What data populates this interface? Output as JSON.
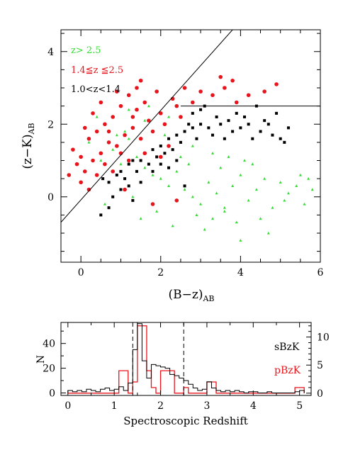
{
  "chart_data": [
    {
      "type": "scatter",
      "title": "",
      "xlabel": "(B−z)",
      "xlabel_sub": "AB",
      "ylabel": "(z−K)",
      "ylabel_sub": "AB",
      "xlim": [
        -0.5,
        6
      ],
      "ylim": [
        -1.8,
        4.6
      ],
      "x_ticks": [
        0,
        2,
        4,
        6
      ],
      "y_ticks": [
        0,
        2,
        4
      ],
      "grid": false,
      "legend_position": "top-left",
      "legend": [
        {
          "label": "z> 2.5",
          "color": "#33dd33"
        },
        {
          "label": "1.4≦z ≦2.5",
          "color": "#e8141b"
        },
        {
          "label": "1.0<z<1.4",
          "color": "#000000"
        }
      ],
      "lines": [
        {
          "name": "diagonal",
          "x": [
            -0.5,
            3.8
          ],
          "y": [
            -0.7,
            4.6
          ]
        },
        {
          "name": "horizontal",
          "x": [
            2.5,
            6
          ],
          "y": [
            2.5,
            2.5
          ]
        }
      ],
      "series": [
        {
          "name": "1.0<z<1.4",
          "marker": "square",
          "color": "#000000",
          "points": [
            [
              0.55,
              0.5
            ],
            [
              0.7,
              0.4
            ],
            [
              0.9,
              0.6
            ],
            [
              1.0,
              0.7
            ],
            [
              1.2,
              0.9
            ],
            [
              1.3,
              1.0
            ],
            [
              1.5,
              1.0
            ],
            [
              1.6,
              1.2
            ],
            [
              1.8,
              1.3
            ],
            [
              2.0,
              1.4
            ],
            [
              2.2,
              1.6
            ],
            [
              2.4,
              1.7
            ],
            [
              2.6,
              1.8
            ],
            [
              2.8,
              1.9
            ],
            [
              3.0,
              2.0
            ],
            [
              3.2,
              1.9
            ],
            [
              3.5,
              2.0
            ],
            [
              3.8,
              1.8
            ],
            [
              4.0,
              1.9
            ],
            [
              4.2,
              2.0
            ],
            [
              4.5,
              1.8
            ],
            [
              4.8,
              1.7
            ],
            [
              5.0,
              1.6
            ],
            [
              1.1,
              0.5
            ],
            [
              1.4,
              0.7
            ],
            [
              1.7,
              0.9
            ],
            [
              2.1,
              1.2
            ],
            [
              2.5,
              1.5
            ],
            [
              2.9,
              1.6
            ],
            [
              3.3,
              1.7
            ],
            [
              3.7,
              2.1
            ],
            [
              4.1,
              2.2
            ],
            [
              4.6,
              2.1
            ],
            [
              3.0,
              2.4
            ],
            [
              2.8,
              2.3
            ],
            [
              1.0,
              0.2
            ],
            [
              0.8,
              0.0
            ],
            [
              1.5,
              0.4
            ],
            [
              2.0,
              0.9
            ],
            [
              2.3,
              1.3
            ],
            [
              4.3,
              1.6
            ],
            [
              3.9,
              2.3
            ],
            [
              3.1,
              2.5
            ],
            [
              2.7,
              2.0
            ],
            [
              1.9,
              1.1
            ],
            [
              1.2,
              0.3
            ],
            [
              0.5,
              -0.5
            ],
            [
              0.7,
              -0.3
            ],
            [
              1.3,
              -0.1
            ],
            [
              2.6,
              0.3
            ],
            [
              3.4,
              2.2
            ],
            [
              5.2,
              1.9
            ],
            [
              4.9,
              2.3
            ],
            [
              2.4,
              1.0
            ],
            [
              1.8,
              0.7
            ],
            [
              4.7,
              2.0
            ],
            [
              3.6,
              1.6
            ],
            [
              2.2,
              0.8
            ],
            [
              5.1,
              1.5
            ],
            [
              4.4,
              2.5
            ]
          ]
        },
        {
          "name": "1.4≦z ≦2.5",
          "marker": "circle",
          "color": "#e8141b",
          "points": [
            [
              -0.2,
              1.3
            ],
            [
              -0.1,
              0.9
            ],
            [
              0.0,
              1.1
            ],
            [
              0.1,
              0.7
            ],
            [
              0.2,
              1.6
            ],
            [
              0.3,
              1.0
            ],
            [
              0.4,
              1.8
            ],
            [
              0.5,
              1.2
            ],
            [
              0.6,
              2.0
            ],
            [
              0.7,
              1.5
            ],
            [
              0.8,
              2.2
            ],
            [
              0.9,
              1.4
            ],
            [
              1.0,
              2.5
            ],
            [
              1.1,
              1.7
            ],
            [
              1.2,
              2.8
            ],
            [
              1.3,
              1.9
            ],
            [
              1.4,
              2.4
            ],
            [
              1.5,
              1.6
            ],
            [
              1.6,
              2.6
            ],
            [
              1.7,
              2.1
            ],
            [
              1.8,
              1.8
            ],
            [
              1.9,
              2.9
            ],
            [
              2.0,
              2.3
            ],
            [
              2.1,
              2.0
            ],
            [
              2.3,
              2.7
            ],
            [
              2.5,
              2.2
            ],
            [
              2.8,
              2.6
            ],
            [
              3.0,
              2.9
            ],
            [
              3.3,
              2.8
            ],
            [
              3.6,
              3.0
            ],
            [
              3.9,
              2.6
            ],
            [
              4.2,
              2.8
            ],
            [
              4.6,
              2.9
            ],
            [
              0.0,
              0.4
            ],
            [
              0.2,
              0.2
            ],
            [
              0.4,
              0.6
            ],
            [
              0.1,
              1.9
            ],
            [
              0.3,
              2.3
            ],
            [
              0.5,
              2.6
            ],
            [
              0.6,
              0.9
            ],
            [
              0.8,
              0.7
            ],
            [
              1.0,
              1.2
            ],
            [
              1.2,
              1.0
            ],
            [
              1.4,
              3.0
            ],
            [
              1.5,
              3.2
            ],
            [
              3.5,
              3.3
            ],
            [
              2.2,
              1.4
            ],
            [
              1.6,
              1.2
            ],
            [
              2.4,
              2.5
            ],
            [
              0.9,
              2.9
            ],
            [
              -0.3,
              0.6
            ],
            [
              0.7,
              1.8
            ],
            [
              1.3,
              2.2
            ],
            [
              2.6,
              3.0
            ],
            [
              3.8,
              3.2
            ],
            [
              2.0,
              1.1
            ],
            [
              1.1,
              0.2
            ],
            [
              1.8,
              -0.2
            ],
            [
              2.4,
              -0.1
            ],
            [
              4.9,
              3.1
            ]
          ]
        },
        {
          "name": "z> 2.5",
          "marker": "triangle",
          "color": "#33dd33",
          "points": [
            [
              0.2,
              1.5
            ],
            [
              0.5,
              1.0
            ],
            [
              0.8,
              1.3
            ],
            [
              1.0,
              0.9
            ],
            [
              1.2,
              1.6
            ],
            [
              1.4,
              1.1
            ],
            [
              1.6,
              0.8
            ],
            [
              1.8,
              0.6
            ],
            [
              2.0,
              0.5
            ],
            [
              2.2,
              0.3
            ],
            [
              2.4,
              0.7
            ],
            [
              2.6,
              0.2
            ],
            [
              2.8,
              0.0
            ],
            [
              3.0,
              -0.2
            ],
            [
              3.2,
              0.4
            ],
            [
              3.4,
              0.1
            ],
            [
              3.6,
              -0.4
            ],
            [
              3.8,
              0.3
            ],
            [
              4.0,
              0.6
            ],
            [
              4.2,
              -0.1
            ],
            [
              4.4,
              0.2
            ],
            [
              4.6,
              0.5
            ],
            [
              4.8,
              -0.3
            ],
            [
              5.0,
              0.4
            ],
            [
              5.2,
              0.1
            ],
            [
              5.4,
              0.3
            ],
            [
              5.6,
              -0.2
            ],
            [
              5.8,
              0.2
            ],
            [
              1.5,
              -0.6
            ],
            [
              2.3,
              -0.8
            ],
            [
              3.1,
              -0.9
            ],
            [
              3.9,
              -0.7
            ],
            [
              4.7,
              -1.0
            ],
            [
              2.7,
              0.9
            ],
            [
              3.5,
              0.8
            ],
            [
              4.1,
              1.0
            ],
            [
              1.1,
              1.8
            ],
            [
              1.7,
              2.5
            ],
            [
              2.1,
              1.7
            ],
            [
              2.5,
              1.1
            ],
            [
              3.3,
              1.2
            ],
            [
              3.7,
              1.1
            ],
            [
              4.3,
              0.9
            ],
            [
              5.5,
              0.6
            ],
            [
              0.6,
              -0.2
            ],
            [
              1.3,
              0.0
            ],
            [
              1.9,
              -0.4
            ],
            [
              2.9,
              -0.5
            ],
            [
              3.6,
              -0.3
            ],
            [
              4.5,
              -0.6
            ],
            [
              5.1,
              -0.1
            ],
            [
              0.9,
              1.7
            ],
            [
              1.6,
              2.1
            ],
            [
              2.2,
              2.2
            ],
            [
              2.8,
              1.4
            ],
            [
              4.0,
              -1.2
            ],
            [
              3.3,
              -0.6
            ],
            [
              5.7,
              0.5
            ],
            [
              1.2,
              2.4
            ],
            [
              0.4,
              2.2
            ]
          ]
        }
      ]
    },
    {
      "type": "bar",
      "title": "",
      "xlabel": "Spectroscopic Redshift",
      "ylabel": "N",
      "xlim": [
        -0.15,
        5.25
      ],
      "ylim": [
        -2,
        57
      ],
      "y2lim": [
        -0.4,
        12.6
      ],
      "x_ticks": [
        0,
        1,
        2,
        3,
        4,
        5
      ],
      "y_ticks": [
        0,
        20,
        40
      ],
      "y2_ticks": [
        0,
        5,
        10
      ],
      "grid": false,
      "legend_position": "right",
      "vlines": [
        1.4,
        2.5
      ],
      "bin_edges": [
        0.0,
        0.1,
        0.2,
        0.3,
        0.4,
        0.5,
        0.6,
        0.7,
        0.8,
        0.9,
        1.0,
        1.1,
        1.2,
        1.3,
        1.4,
        1.5,
        1.6,
        1.7,
        1.8,
        1.9,
        2.0,
        2.1,
        2.2,
        2.3,
        2.4,
        2.5,
        2.6,
        2.7,
        2.8,
        2.9,
        3.0,
        3.1,
        3.2,
        3.3,
        3.4,
        3.5,
        3.6,
        3.7,
        3.8,
        3.9,
        4.0,
        4.1,
        4.2,
        4.3,
        4.4,
        4.5,
        4.6,
        4.7,
        4.8,
        4.9,
        5.0,
        5.1
      ],
      "series": [
        {
          "name": "sBzK",
          "axis": "left",
          "color": "#000000",
          "values": [
            2,
            1,
            2,
            1,
            3,
            2,
            1,
            3,
            4,
            2,
            3,
            5,
            2,
            8,
            35,
            56,
            26,
            12,
            23,
            22,
            21,
            20,
            15,
            14,
            12,
            10,
            7,
            4,
            2,
            3,
            9,
            4,
            2,
            1,
            2,
            1,
            2,
            1,
            0,
            1,
            1,
            0,
            0,
            1,
            0,
            0,
            0,
            0,
            0,
            1,
            2
          ]
        },
        {
          "name": "pBzK",
          "axis": "right",
          "color": "#e8141b",
          "values": [
            0,
            0,
            0,
            0,
            0,
            0,
            0,
            0,
            0,
            0,
            0,
            4,
            4,
            0,
            2,
            12,
            12,
            4,
            1,
            0,
            4,
            4,
            4,
            0,
            0,
            1,
            0,
            0,
            0,
            0,
            2,
            2,
            0,
            0,
            0,
            0,
            0,
            0,
            0,
            0,
            0,
            0,
            0,
            0,
            0,
            0,
            0,
            0,
            0,
            1,
            1
          ]
        }
      ]
    }
  ]
}
